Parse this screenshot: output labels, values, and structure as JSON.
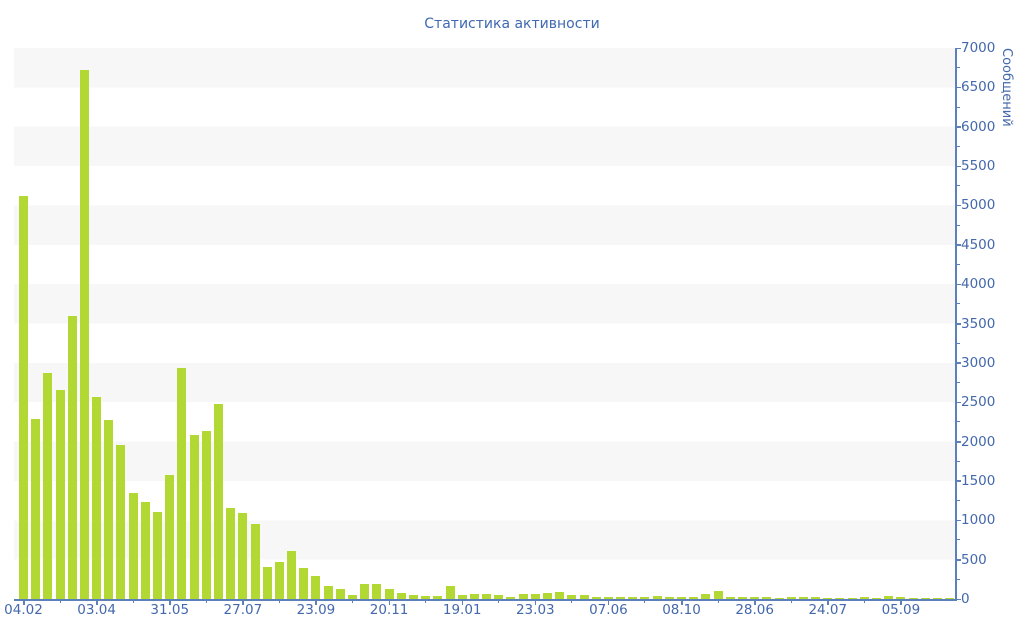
{
  "page": {
    "title": "Статистика активности"
  },
  "chart_data": {
    "type": "bar",
    "title": "Статистика активности",
    "ylabel": "Сообщений",
    "xlabel": "",
    "ylim": [
      0,
      7000
    ],
    "y_tick_step": 500,
    "y_minor_tick_step": 250,
    "y_ticks": [
      0,
      500,
      1000,
      1500,
      2000,
      2500,
      3000,
      3500,
      4000,
      4500,
      5000,
      5500,
      6000,
      6500,
      7000
    ],
    "x_tick_labels": [
      "04.02",
      "03.04",
      "31.05",
      "27.07",
      "23.09",
      "20.11",
      "19.01",
      "23.03",
      "07.06",
      "08.10",
      "28.06",
      "24.07",
      "05.09"
    ],
    "bars_per_major_tick": 6,
    "legend": "none",
    "grid": "horizontal striped bands every 500",
    "values": [
      5120,
      2290,
      2870,
      2660,
      3600,
      6720,
      2570,
      2270,
      1960,
      1350,
      1230,
      1110,
      1570,
      2940,
      2080,
      2130,
      2480,
      1160,
      1090,
      950,
      410,
      465,
      610,
      390,
      295,
      170,
      125,
      55,
      185,
      185,
      127,
      75,
      50,
      40,
      40,
      160,
      55,
      60,
      70,
      45,
      25,
      60,
      60,
      75,
      85,
      45,
      45,
      20,
      25,
      20,
      25,
      30,
      40,
      20,
      20,
      25,
      70,
      100,
      30,
      20,
      25,
      20,
      15,
      25,
      20,
      20,
      15,
      10,
      15,
      20,
      15,
      40,
      20,
      15,
      12,
      10,
      15
    ],
    "colors": {
      "bar": "#b2d933",
      "stripe": "#f7f7f7",
      "plot_background": "#ffffff",
      "axis": "#5b80ba",
      "tick_labels": "#4468ac",
      "title": "#3f69b2"
    }
  }
}
